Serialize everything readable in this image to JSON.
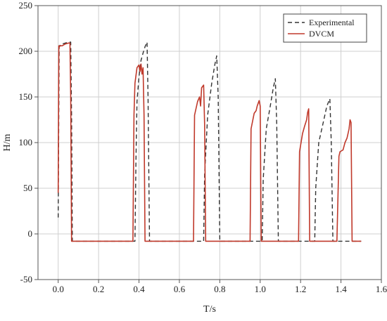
{
  "chart_data": {
    "type": "line",
    "xlabel": "T/s",
    "ylabel": "H/m",
    "xlim": [
      -0.1,
      1.6
    ],
    "ylim": [
      -50,
      250
    ],
    "xticks": [
      "0.0",
      "0.2",
      "0.4",
      "0.6",
      "0.8",
      "1.0",
      "1.2",
      "1.4",
      "1.6"
    ],
    "yticks": [
      "-50",
      "0",
      "50",
      "100",
      "150",
      "200",
      "250"
    ],
    "grid": true,
    "legend_position": "top-right",
    "series": [
      {
        "name": "Experimental",
        "style": "dashed",
        "color": "#333333",
        "x": [
          0.0,
          0.005,
          0.01,
          0.02,
          0.035,
          0.05,
          0.062,
          0.066,
          0.07,
          0.09,
          0.2,
          0.3,
          0.38,
          0.385,
          0.39,
          0.4,
          0.41,
          0.42,
          0.43,
          0.44,
          0.445,
          0.452,
          0.46,
          0.5,
          0.6,
          0.7,
          0.72,
          0.725,
          0.74,
          0.76,
          0.775,
          0.785,
          0.792,
          0.8,
          0.9,
          1.0,
          1.01,
          1.015,
          1.03,
          1.05,
          1.065,
          1.075,
          1.082,
          1.09,
          1.15,
          1.25,
          1.27,
          1.275,
          1.29,
          1.31,
          1.33,
          1.345,
          1.352,
          1.36,
          1.4,
          1.45,
          1.5
        ],
        "y": [
          18,
          205,
          207,
          208,
          209,
          210,
          210,
          130,
          -8,
          -8,
          -8,
          -8,
          -8,
          80,
          145,
          172,
          190,
          198,
          205,
          210,
          150,
          -8,
          -8,
          -8,
          -8,
          -8,
          -8,
          65,
          130,
          165,
          185,
          195,
          150,
          -8,
          -8,
          -8,
          -8,
          60,
          115,
          140,
          160,
          170,
          120,
          -8,
          -8,
          -8,
          -8,
          50,
          100,
          120,
          140,
          148,
          100,
          -8,
          -8,
          -8,
          -8
        ]
      },
      {
        "name": "DVCM",
        "style": "solid",
        "color": "#c0392b",
        "x": [
          0.0,
          0.003,
          0.006,
          0.01,
          0.02,
          0.035,
          0.05,
          0.058,
          0.062,
          0.066,
          0.2,
          0.3,
          0.37,
          0.375,
          0.38,
          0.39,
          0.4,
          0.405,
          0.41,
          0.415,
          0.42,
          0.425,
          0.43,
          0.6,
          0.67,
          0.675,
          0.69,
          0.7,
          0.705,
          0.71,
          0.72,
          0.725,
          0.73,
          0.735,
          0.9,
          0.95,
          0.955,
          0.97,
          0.98,
          0.985,
          0.995,
          1.0,
          1.005,
          1.15,
          1.19,
          1.195,
          1.21,
          1.22,
          1.23,
          1.235,
          1.24,
          1.245,
          1.38,
          1.39,
          1.395,
          1.41,
          1.42,
          1.43,
          1.44,
          1.445,
          1.45,
          1.455,
          1.5
        ],
        "y": [
          45,
          206,
          205,
          206,
          206,
          208,
          209,
          209,
          150,
          -8,
          -8,
          -8,
          -8,
          130,
          165,
          182,
          185,
          178,
          186,
          175,
          182,
          130,
          -8,
          -8,
          -8,
          130,
          145,
          150,
          140,
          160,
          163,
          120,
          -8,
          -8,
          -8,
          -8,
          115,
          132,
          135,
          140,
          146,
          140,
          -8,
          -8,
          -8,
          90,
          110,
          118,
          125,
          133,
          137,
          -8,
          -8,
          85,
          90,
          92,
          100,
          105,
          115,
          125,
          122,
          -8,
          -8
        ]
      }
    ]
  }
}
